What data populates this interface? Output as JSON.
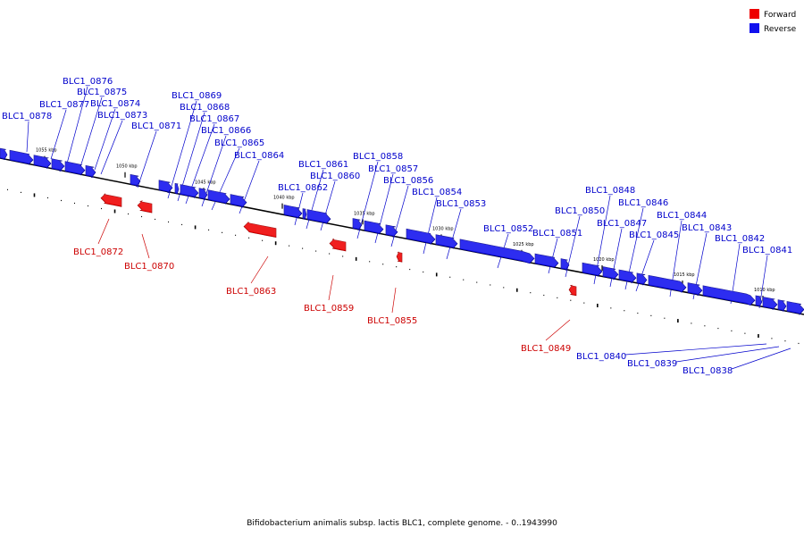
{
  "caption": "Bifidobacterium animalis subsp. lactis BLC1, complete genome. - 0..1943990",
  "legend": {
    "forward": {
      "label": "Forward",
      "color": "#ee0000"
    },
    "reverse": {
      "label": "Reverse",
      "color": "#1111ee"
    }
  },
  "colors": {
    "forward_gene": "#ee0000",
    "forward_label": "#cc0000",
    "reverse_gene": "#1111ee",
    "reverse_label": "#0000cc",
    "backbone": "#000000"
  },
  "ticks": [
    {
      "kbp": 1055,
      "label": "1055 kbp"
    },
    {
      "kbp": 1050,
      "label": "1050 kbp"
    },
    {
      "kbp": 1045,
      "label": "1045 kbp"
    },
    {
      "kbp": 1040,
      "label": "1040 kbp"
    },
    {
      "kbp": 1035,
      "label": "1035 kbp"
    },
    {
      "kbp": 1030,
      "label": "1030 kbp"
    },
    {
      "kbp": 1025,
      "label": "1025 kbp"
    },
    {
      "kbp": 1020,
      "label": "1020 kbp"
    },
    {
      "kbp": 1015,
      "label": "1015 kbp"
    },
    {
      "kbp": 1010,
      "label": "1010 kbp"
    }
  ],
  "genes": [
    {
      "id": "BLC1_0878",
      "strand": "reverse"
    },
    {
      "id": "BLC1_0877",
      "strand": "reverse"
    },
    {
      "id": "BLC1_0876",
      "strand": "reverse"
    },
    {
      "id": "BLC1_0875",
      "strand": "reverse"
    },
    {
      "id": "BLC1_0874",
      "strand": "reverse"
    },
    {
      "id": "BLC1_0873",
      "strand": "reverse"
    },
    {
      "id": "BLC1_0872",
      "strand": "forward"
    },
    {
      "id": "BLC1_0871",
      "strand": "reverse"
    },
    {
      "id": "BLC1_0870",
      "strand": "forward"
    },
    {
      "id": "BLC1_0869",
      "strand": "reverse"
    },
    {
      "id": "BLC1_0868",
      "strand": "reverse"
    },
    {
      "id": "BLC1_0867",
      "strand": "reverse"
    },
    {
      "id": "BLC1_0866",
      "strand": "reverse"
    },
    {
      "id": "BLC1_0865",
      "strand": "reverse"
    },
    {
      "id": "BLC1_0864",
      "strand": "reverse"
    },
    {
      "id": "BLC1_0863",
      "strand": "forward"
    },
    {
      "id": "BLC1_0862",
      "strand": "reverse"
    },
    {
      "id": "BLC1_0861",
      "strand": "reverse"
    },
    {
      "id": "BLC1_0860",
      "strand": "reverse"
    },
    {
      "id": "BLC1_0859",
      "strand": "forward"
    },
    {
      "id": "BLC1_0858",
      "strand": "reverse"
    },
    {
      "id": "BLC1_0857",
      "strand": "reverse"
    },
    {
      "id": "BLC1_0856",
      "strand": "reverse"
    },
    {
      "id": "BLC1_0855",
      "strand": "forward"
    },
    {
      "id": "BLC1_0854",
      "strand": "reverse"
    },
    {
      "id": "BLC1_0853",
      "strand": "reverse"
    },
    {
      "id": "BLC1_0852",
      "strand": "reverse"
    },
    {
      "id": "BLC1_0851",
      "strand": "reverse"
    },
    {
      "id": "BLC1_0850",
      "strand": "reverse"
    },
    {
      "id": "BLC1_0849",
      "strand": "forward"
    },
    {
      "id": "BLC1_0848",
      "strand": "reverse"
    },
    {
      "id": "BLC1_0847",
      "strand": "reverse"
    },
    {
      "id": "BLC1_0846",
      "strand": "reverse"
    },
    {
      "id": "BLC1_0845",
      "strand": "reverse"
    },
    {
      "id": "BLC1_0844",
      "strand": "reverse"
    },
    {
      "id": "BLC1_0843",
      "strand": "reverse"
    },
    {
      "id": "BLC1_0842",
      "strand": "reverse"
    },
    {
      "id": "BLC1_0841",
      "strand": "reverse"
    },
    {
      "id": "BLC1_0840",
      "strand": "reverse"
    },
    {
      "id": "BLC1_0839",
      "strand": "reverse"
    },
    {
      "id": "BLC1_0838",
      "strand": "reverse"
    }
  ]
}
